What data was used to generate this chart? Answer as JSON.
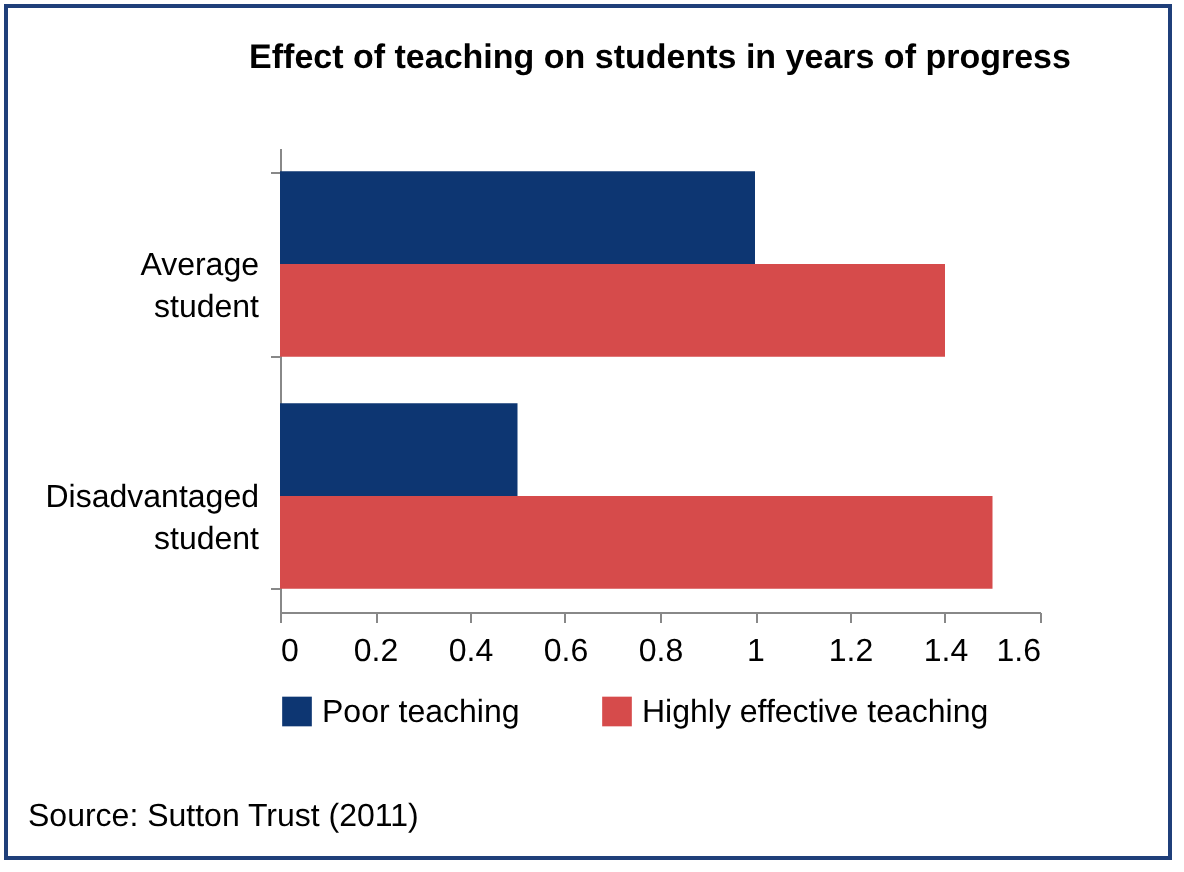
{
  "chart_data": {
    "type": "bar",
    "orientation": "horizontal",
    "title": "Effect of teaching on students in years of progress",
    "categories": [
      "Average student",
      "Disadvantaged student"
    ],
    "series": [
      {
        "name": "Poor teaching",
        "color": "#0d3672",
        "values": [
          1,
          0.5
        ]
      },
      {
        "name": "Highly effective teaching",
        "color": "#d64b4b",
        "values": [
          1.4,
          1.5
        ]
      }
    ],
    "xlim": [
      0,
      1.6
    ],
    "xticks": [
      0,
      0.2,
      0.4,
      0.6,
      0.8,
      1,
      1.2,
      1.4,
      1.6
    ],
    "grid": false,
    "legend": "bottom",
    "annotations": [
      "Source: Sutton Trust (2011)"
    ]
  }
}
